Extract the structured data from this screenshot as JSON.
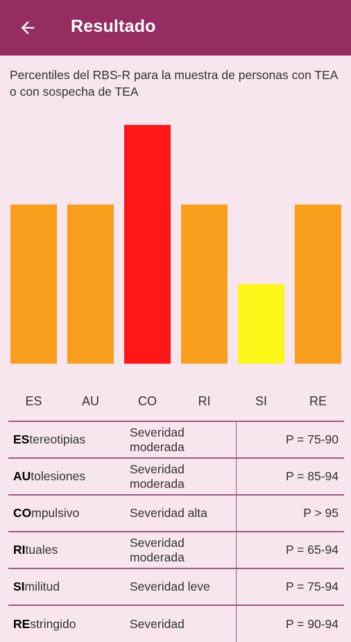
{
  "header": {
    "title": "Resultado",
    "back_icon": "arrow-back-icon"
  },
  "subtitle": "Percentiles del RBS-R para la muestra de personas con TEA o con sospecha de TEA",
  "colors": {
    "appbar": "#962d62",
    "orange": "#f99d1c",
    "red": "#fd1817",
    "yellow": "#fbf719",
    "divider": "#9b5a7b"
  },
  "chart_data": {
    "type": "bar",
    "categories": [
      "ES",
      "AU",
      "CO",
      "RI",
      "SI",
      "RE"
    ],
    "values": [
      2,
      2,
      3,
      2,
      1,
      2
    ],
    "colors": [
      "#f99d1c",
      "#f99d1c",
      "#fd1817",
      "#f99d1c",
      "#fbf719",
      "#f99d1c"
    ],
    "ylim": [
      0,
      3
    ],
    "grid": false
  },
  "results": [
    {
      "bold": "ES",
      "rest": "tereotipias",
      "severity": "Severidad moderada",
      "percentile": "P = 75-90"
    },
    {
      "bold": "AU",
      "rest": "tolesiones",
      "severity": "Severidad moderada",
      "percentile": "P = 85-94"
    },
    {
      "bold": "CO",
      "rest": "mpulsivo",
      "severity": "Severidad alta",
      "percentile": "P > 95"
    },
    {
      "bold": "RI",
      "rest": "tuales",
      "severity": "Severidad moderada",
      "percentile": "P = 65-94"
    },
    {
      "bold": "SI",
      "rest": "militud",
      "severity": "Severidad leve",
      "percentile": "P = 75-94"
    },
    {
      "bold": "RE",
      "rest": "stringido",
      "severity": "Severidad",
      "percentile": "P = 90-94"
    }
  ]
}
